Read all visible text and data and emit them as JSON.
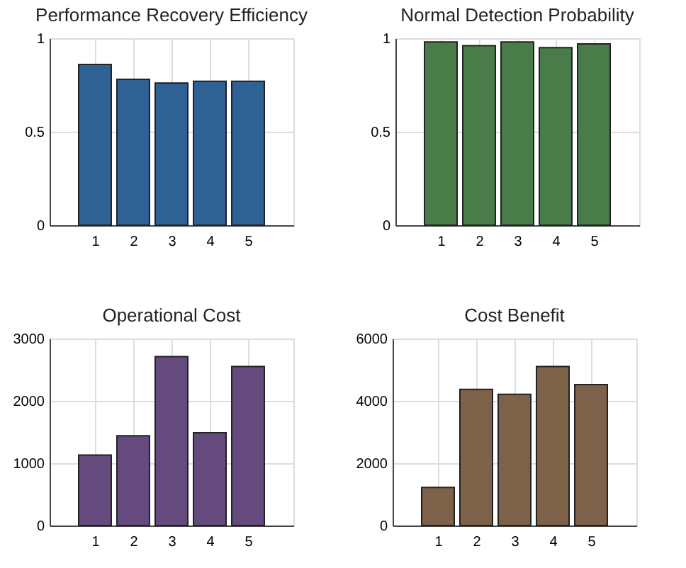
{
  "chart_data": [
    {
      "type": "bar",
      "title": "Performance Recovery Efficiency",
      "categories": [
        "1",
        "2",
        "3",
        "4",
        "5"
      ],
      "values": [
        0.86,
        0.78,
        0.76,
        0.77,
        0.77
      ],
      "color": "#2e6194",
      "ylim": [
        0,
        1
      ],
      "yticks": [
        0,
        0.5,
        1
      ],
      "grid": true
    },
    {
      "type": "bar",
      "title": "Normal Detection Probability",
      "categories": [
        "1",
        "2",
        "3",
        "4",
        "5"
      ],
      "values": [
        0.98,
        0.96,
        0.98,
        0.95,
        0.97
      ],
      "color": "#4a7c4a",
      "ylim": [
        0,
        1
      ],
      "yticks": [
        0,
        0.5,
        1
      ],
      "grid": true
    },
    {
      "type": "bar",
      "title": "Operational Cost",
      "categories": [
        "1",
        "2",
        "3",
        "4",
        "5"
      ],
      "values": [
        1130,
        1440,
        2710,
        1490,
        2550
      ],
      "color": "#654a7e",
      "ylim": [
        0,
        3000
      ],
      "yticks": [
        0,
        1000,
        2000,
        3000
      ],
      "grid": true
    },
    {
      "type": "bar",
      "title": "Cost Benefit",
      "categories": [
        "1",
        "2",
        "3",
        "4",
        "5"
      ],
      "values": [
        1220,
        4370,
        4210,
        5100,
        4520
      ],
      "color": "#7d6148",
      "ylim": [
        0,
        6000
      ],
      "yticks": [
        0,
        2000,
        4000,
        6000
      ],
      "grid": true
    }
  ]
}
